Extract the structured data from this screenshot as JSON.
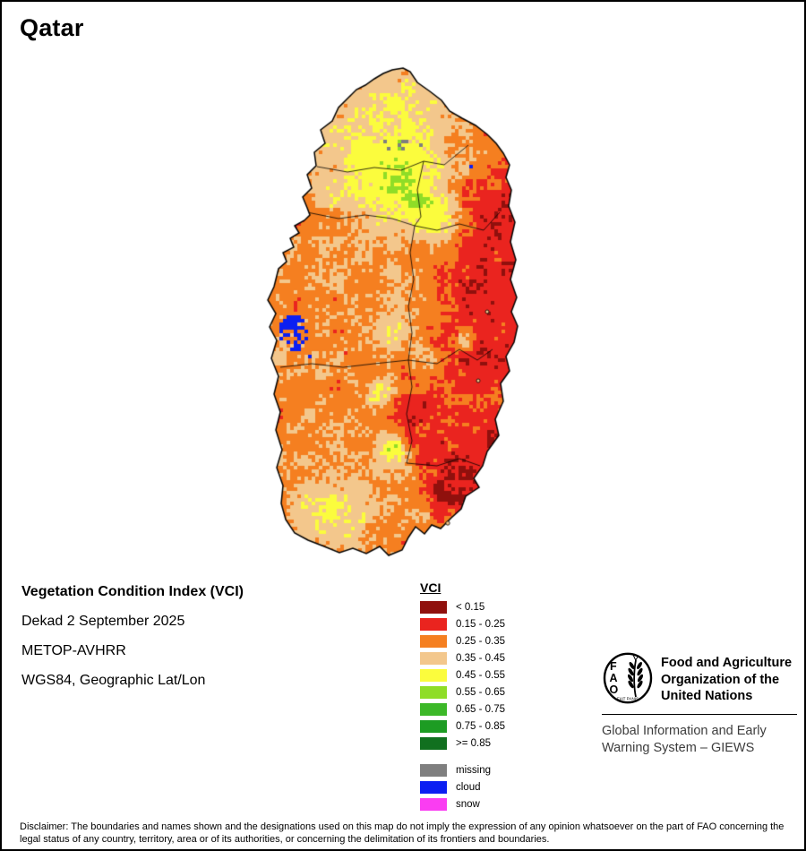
{
  "title": "Qatar",
  "info": {
    "line1": "Vegetation Condition Index (VCI)",
    "line2": "Dekad 2 September 2025",
    "line3": "METOP-AVHRR",
    "line4": "WGS84, Geographic Lat/Lon"
  },
  "legend": {
    "title": "VCI",
    "classes": [
      {
        "label": "< 0.15",
        "color": "#90100d"
      },
      {
        "label": "0.15 - 0.25",
        "color": "#ea241f"
      },
      {
        "label": "0.25 - 0.35",
        "color": "#f57f20"
      },
      {
        "label": "0.35 - 0.45",
        "color": "#f3c78c"
      },
      {
        "label": "0.45 - 0.55",
        "color": "#fbfc3d"
      },
      {
        "label": "0.55 - 0.65",
        "color": "#8fdd27"
      },
      {
        "label": "0.65 - 0.75",
        "color": "#3cb828"
      },
      {
        "label": "0.75 - 0.85",
        "color": "#1d9c23"
      },
      {
        "label": ">= 0.85",
        "color": "#11701f"
      }
    ],
    "flags": [
      {
        "label": "missing",
        "color": "#7f7f7f"
      },
      {
        "label": "cloud",
        "color": "#0c1ff2"
      },
      {
        "label": "snow",
        "color": "#fa3df2"
      }
    ]
  },
  "fao": {
    "logo_text": "FAO",
    "org_lines": [
      "Food and Agriculture",
      "Organization of the",
      "United Nations"
    ],
    "giews_lines": [
      "Global Information and Early",
      "Warning System – GIEWS"
    ]
  },
  "disclaimer": "Disclaimer: The boundaries and names shown and the designations used on this map do not imply the expression of any opinion whatsoever on the part of FAO concerning the legal status of any country, territory, area or of its authorities, or concerning the delimitation of its frontiers and boundaries."
}
